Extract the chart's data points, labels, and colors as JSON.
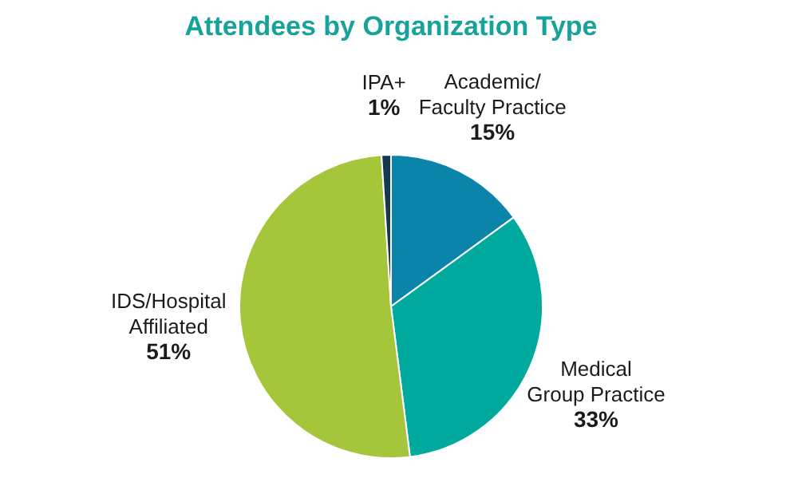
{
  "chart_data": {
    "type": "pie",
    "title": "Attendees by Organization Type",
    "categories": [
      "Academic/\nFaculty Practice",
      "Medical\nGroup Practice",
      "IDS/Hospital\nAffiliated",
      "IPA+"
    ],
    "values": [
      15,
      33,
      51,
      1
    ],
    "colors": [
      "#0a84a8",
      "#00a99d",
      "#a5c63b",
      "#16384f"
    ],
    "value_labels": [
      "15%",
      "33%",
      "51%",
      "1%"
    ]
  }
}
